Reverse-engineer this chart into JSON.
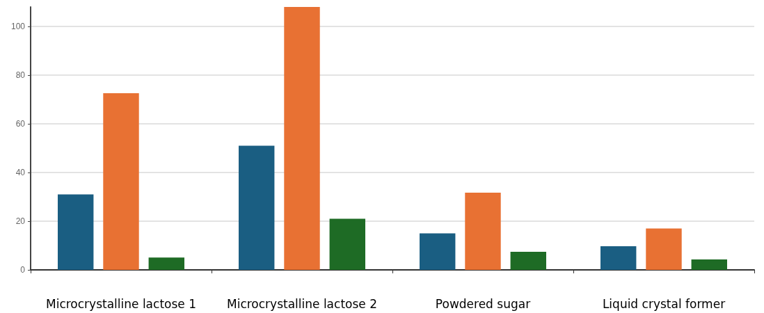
{
  "chart_data": {
    "type": "bar",
    "categories": [
      "Microcrystalline lactose 1",
      "Microcrystalline lactose 2",
      "Powdered sugar",
      "Liquid crystal former"
    ],
    "series": [
      {
        "color": "#1a5e82",
        "values": [
          31,
          51,
          15,
          9.7
        ]
      },
      {
        "color": "#e87133",
        "values": [
          72.6,
          108,
          31.7,
          17
        ]
      },
      {
        "color": "#1e6b25",
        "values": [
          5.1,
          21,
          7.4,
          4.3
        ]
      }
    ],
    "ylim": [
      0,
      108
    ],
    "yticks": [
      0,
      20,
      40,
      60,
      80,
      100
    ],
    "grid": "y"
  }
}
